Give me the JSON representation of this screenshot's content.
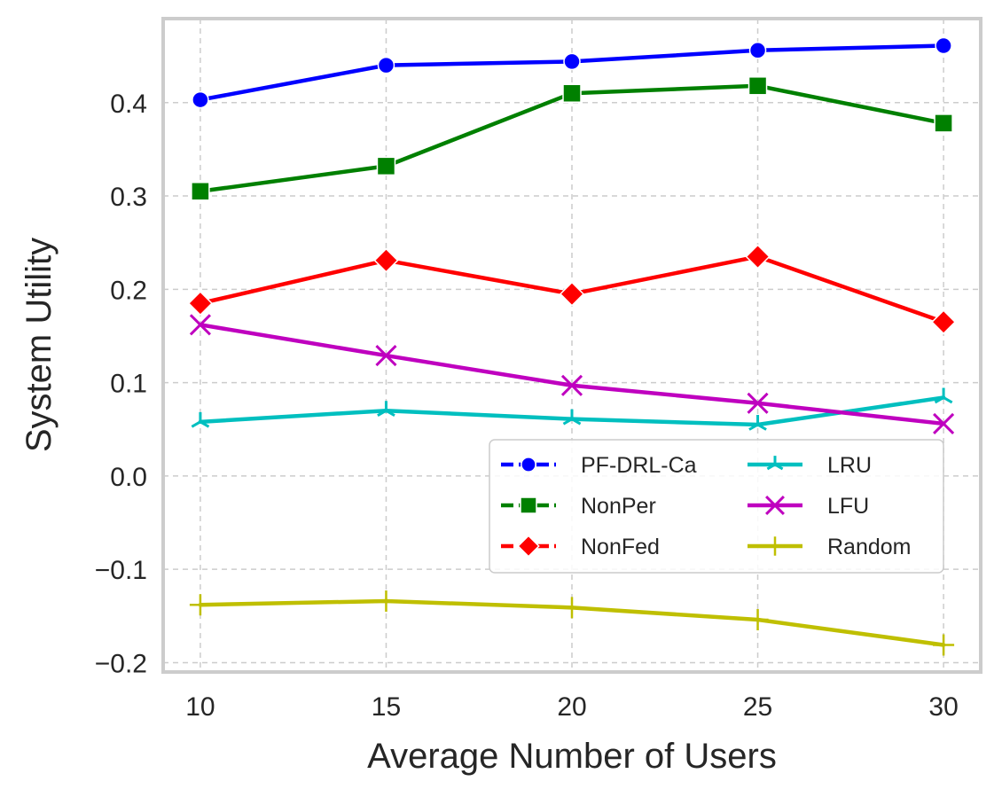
{
  "chart_data": {
    "type": "line",
    "xlabel": "Average Number of Users",
    "ylabel": "System Utility",
    "x": [
      10,
      15,
      20,
      25,
      30
    ],
    "xlim": [
      9,
      31
    ],
    "ylim": [
      -0.21,
      0.49
    ],
    "xticks": [
      10,
      15,
      20,
      25,
      30
    ],
    "xtick_labels": [
      "10",
      "15",
      "20",
      "25",
      "30"
    ],
    "yticks": [
      -0.2,
      -0.1,
      0.0,
      0.1,
      0.2,
      0.3,
      0.4
    ],
    "ytick_labels": [
      "−0.2",
      "−0.1",
      "0.0",
      "0.1",
      "0.2",
      "0.3",
      "0.4"
    ],
    "grid": true,
    "legend_position": "lower-right",
    "legend_columns": 2,
    "series": [
      {
        "name": "PF-DRL-Ca",
        "color": "#0000ff",
        "marker": "circle",
        "dashed_legend": true,
        "values": [
          0.403,
          0.44,
          0.444,
          0.456,
          0.461
        ]
      },
      {
        "name": "NonPer",
        "color": "#008000",
        "marker": "square",
        "dashed_legend": true,
        "values": [
          0.305,
          0.332,
          0.41,
          0.418,
          0.378
        ]
      },
      {
        "name": "NonFed",
        "color": "#ff0000",
        "marker": "diamond",
        "dashed_legend": true,
        "values": [
          0.185,
          0.231,
          0.195,
          0.235,
          0.165
        ]
      },
      {
        "name": "LRU",
        "color": "#00bfbf",
        "marker": "tri",
        "dashed_legend": false,
        "values": [
          0.058,
          0.07,
          0.061,
          0.055,
          0.084
        ]
      },
      {
        "name": "LFU",
        "color": "#bf00bf",
        "marker": "x",
        "dashed_legend": false,
        "values": [
          0.162,
          0.129,
          0.097,
          0.078,
          0.056
        ]
      },
      {
        "name": "Random",
        "color": "#bfbf00",
        "marker": "plus",
        "dashed_legend": false,
        "values": [
          -0.138,
          -0.134,
          -0.141,
          -0.154,
          -0.181
        ]
      }
    ]
  }
}
